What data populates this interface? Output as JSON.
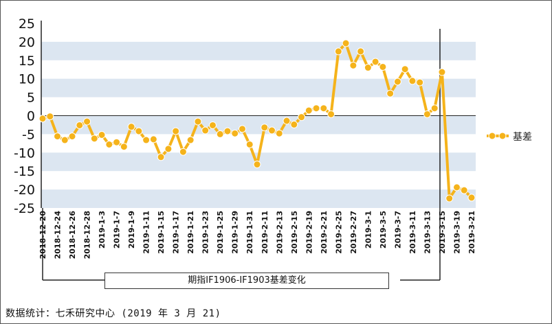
{
  "chart_data": {
    "type": "line",
    "title": "期指IF1906-IF1903基差变化",
    "series": [
      {
        "name": "基差",
        "color": "#F5B31B",
        "values": [
          -0.8,
          -0.2,
          -5.6,
          -6.6,
          -5.6,
          -2.6,
          -1.6,
          -6.2,
          -5.2,
          -7.8,
          -7.2,
          -8.4,
          -3.0,
          -4.2,
          -6.6,
          -6.4,
          -11.2,
          -9.0,
          -4.2,
          -9.8,
          -6.6,
          -1.6,
          -4.0,
          -2.6,
          -5.0,
          -4.2,
          -4.8,
          -3.6,
          -7.8,
          -13.2,
          -3.2,
          -4.0,
          -4.8,
          -1.4,
          -2.4,
          -0.4,
          1.4,
          2.0,
          2.0,
          0.4,
          17.4,
          19.6,
          13.6,
          17.4,
          13.0,
          14.6,
          13.2,
          6.0,
          9.2,
          12.6,
          9.4,
          9.0,
          0.4,
          2.0,
          11.8,
          -22.4,
          -19.4,
          -20.2,
          -22.2
        ]
      }
    ],
    "x_labels": [
      "2018-12-20",
      "2018-12-24",
      "2018-12-26",
      "2018-12-28",
      "2019-1-3",
      "2019-1-7",
      "2019-1-9",
      "2019-1-11",
      "2019-1-15",
      "2019-1-17",
      "2019-1-21",
      "2019-1-23",
      "2019-1-25",
      "2019-1-29",
      "2019-1-31",
      "2019-2-11",
      "2019-2-13",
      "2019-2-15",
      "2019-2-19",
      "2019-2-21",
      "2019-2-25",
      "2019-2-27",
      "2019-3-1",
      "2019-3-5",
      "2019-3-7",
      "2019-3-11",
      "2019-3-13",
      "2019-3-15",
      "2019-3-19",
      "2019-3-21"
    ],
    "y_ticks": [
      25,
      20,
      15,
      10,
      5,
      0,
      -5,
      -10,
      -15,
      -20,
      -25
    ],
    "ylim": [
      -25,
      25
    ],
    "grid": "alternating horizontal bands",
    "band_color": "#DCE6F1",
    "legend_position": "right"
  },
  "footer": {
    "source": "数据统计：七禾研究中心 (2019 年 3 月 21)"
  }
}
